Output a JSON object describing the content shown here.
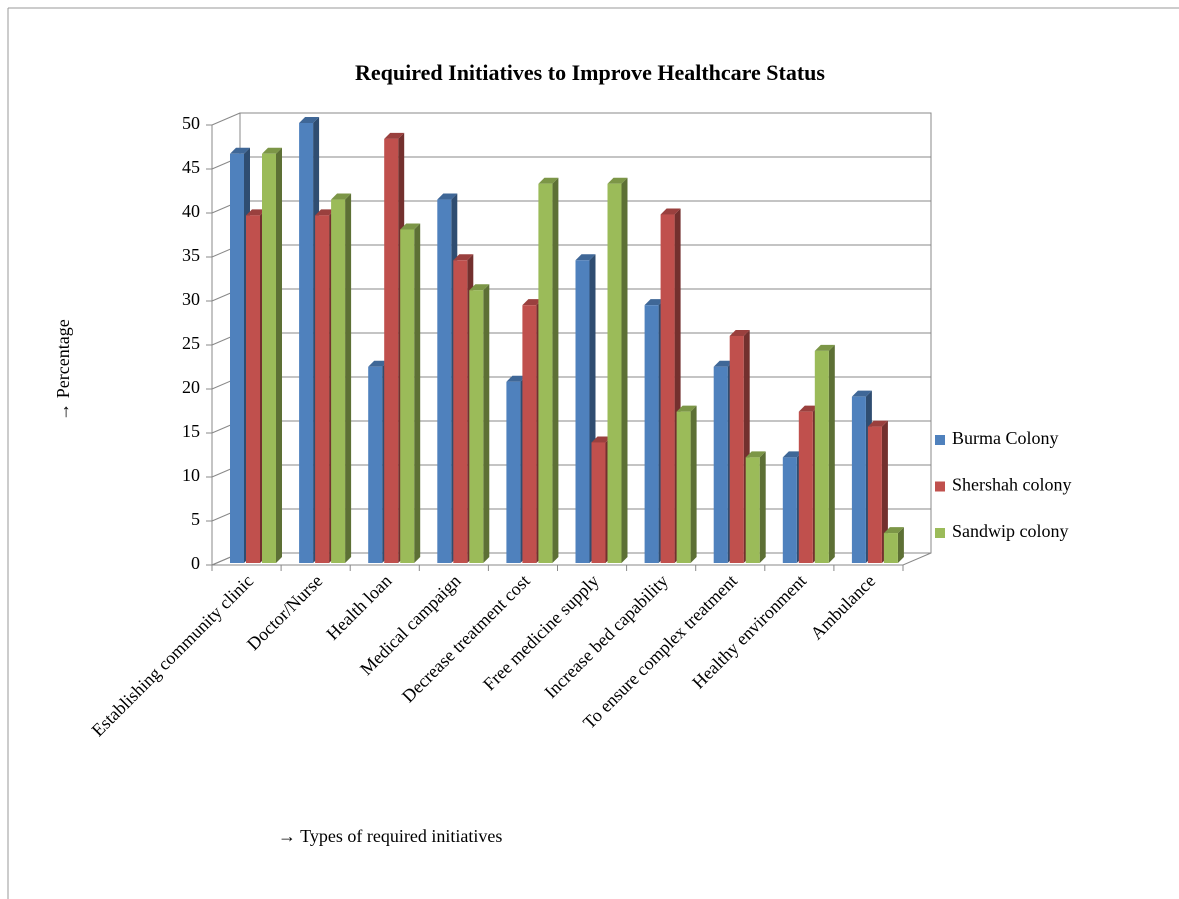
{
  "chart_data": {
    "type": "bar3d",
    "title": "Required Initiatives to Improve Healthcare Status",
    "y_label": "→  Percentage",
    "x_label": "→  Types of required initiatives",
    "categories": [
      "Establishing community clinic",
      "Doctor/Nurse",
      "Health loan",
      "Medical campaign",
      "Decrease treatment cost",
      "Free medicine supply",
      "Increase bed capability",
      "To ensure complex treatment",
      "Healthy environment",
      "Ambulance"
    ],
    "series": [
      {
        "name": "Burma Colony",
        "color": "#4f81bd",
        "values": [
          46.5,
          50,
          22.3,
          41.3,
          20.6,
          34.4,
          29.3,
          22.3,
          12,
          18.9
        ]
      },
      {
        "name": "Shershah colony",
        "color": "#c0504d",
        "values": [
          39.5,
          39.5,
          48.2,
          34.4,
          29.3,
          13.7,
          39.6,
          25.8,
          17.2,
          15.5
        ]
      },
      {
        "name": "Sandwip colony",
        "color": "#9bbb59",
        "values": [
          46.5,
          41.3,
          37.9,
          31,
          43.1,
          43.1,
          17.2,
          12,
          24.1,
          3.4
        ]
      }
    ],
    "ylim": [
      0,
      50
    ],
    "yticks": [
      0,
      5,
      10,
      15,
      20,
      25,
      30,
      35,
      40,
      45,
      50
    ],
    "grid": true,
    "legend": "right"
  }
}
